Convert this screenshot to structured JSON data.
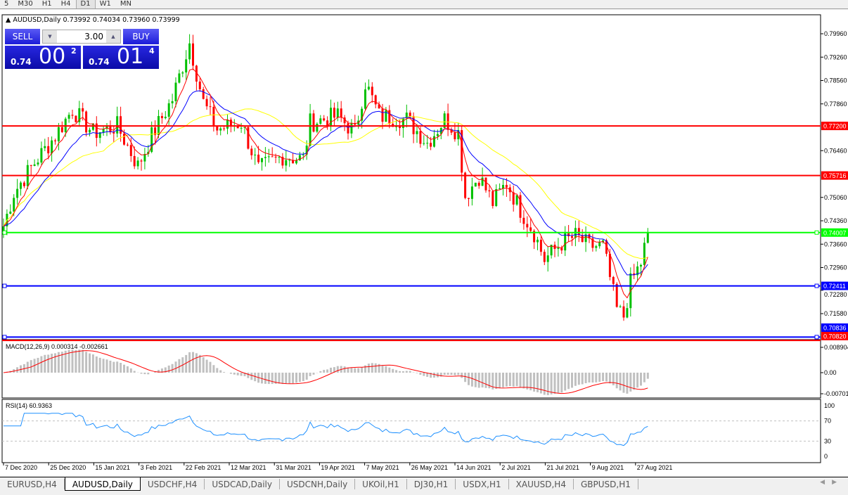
{
  "toolbar": {
    "timeframes": [
      "5",
      "M30",
      "H1",
      "H4",
      "D1",
      "W1",
      "MN"
    ],
    "active": "D1"
  },
  "header": {
    "symbol": "AUDUSD,Daily",
    "ohlc": "0.73992 0.74034 0.73960 0.73999"
  },
  "trade_panel": {
    "sell_label": "SELL",
    "buy_label": "BUY",
    "lot": "3.00",
    "sell": {
      "prefix": "0.74",
      "big": "00",
      "sup": "2"
    },
    "buy": {
      "prefix": "0.74",
      "big": "01",
      "sup": "4"
    }
  },
  "colors": {
    "bull": "#00c000",
    "bear": "#ff0000",
    "ma_fast": "#ff0000",
    "ma_mid": "#0000ff",
    "ma_slow": "#ffff00",
    "macd_hist": "#c0c0c0",
    "macd_signal": "#ff0000",
    "rsi": "#1e90ff"
  },
  "chart_data": {
    "type": "candlestick",
    "price_axis": [
      "0.79960",
      "0.79260",
      "0.78560",
      "0.77860",
      "0.76460",
      "0.75060",
      "0.74360",
      "0.73660",
      "0.72960",
      "0.72280",
      "0.71580"
    ],
    "date_axis": [
      "7 Dec 2020",
      "25 Dec 2020",
      "15 Jan 2021",
      "3 Feb 2021",
      "22 Feb 2021",
      "12 Mar 2021",
      "31 Mar 2021",
      "19 Apr 2021",
      "7 May 2021",
      "26 May 2021",
      "14 Jun 2021",
      "2 Jul 2021",
      "21 Jul 2021",
      "9 Aug 2021",
      "27 Aug 2021"
    ],
    "ylim": [
      0.7075,
      0.805
    ],
    "close_path": [
      [
        0,
        0.742
      ],
      [
        3,
        0.752
      ],
      [
        9,
        0.761
      ],
      [
        15,
        0.769
      ],
      [
        20,
        0.777
      ],
      [
        26,
        0.77
      ],
      [
        33,
        0.772
      ],
      [
        39,
        0.76
      ],
      [
        43,
        0.769
      ],
      [
        49,
        0.78
      ],
      [
        54,
        0.797
      ],
      [
        58,
        0.779
      ],
      [
        62,
        0.771
      ],
      [
        69,
        0.773
      ],
      [
        74,
        0.759
      ],
      [
        81,
        0.763
      ],
      [
        87,
        0.762
      ],
      [
        89,
        0.773
      ],
      [
        97,
        0.775
      ],
      [
        102,
        0.77
      ],
      [
        105,
        0.785
      ],
      [
        109,
        0.775
      ],
      [
        117,
        0.774
      ],
      [
        123,
        0.767
      ],
      [
        128,
        0.774
      ],
      [
        132,
        0.77
      ],
      [
        134,
        0.751
      ],
      [
        138,
        0.757
      ],
      [
        142,
        0.749
      ],
      [
        146,
        0.755
      ],
      [
        150,
        0.747
      ],
      [
        154,
        0.74
      ],
      [
        157,
        0.732
      ],
      [
        162,
        0.737
      ],
      [
        166,
        0.739
      ],
      [
        170,
        0.736
      ],
      [
        174,
        0.736
      ],
      [
        178,
        0.717
      ],
      [
        180,
        0.715
      ],
      [
        182,
        0.725
      ],
      [
        185,
        0.731
      ],
      [
        187,
        0.74
      ]
    ],
    "hlines": [
      {
        "price": "0.77200",
        "color": "#ff0000"
      },
      {
        "price": "0.75716",
        "color": "#ff0000"
      },
      {
        "price": "0.74007",
        "color": "#00ff00"
      },
      {
        "price": "0.72411",
        "color": "#0000ff"
      },
      {
        "price": "0.70836",
        "color": "#0000ff"
      },
      {
        "price": "0.70820",
        "color": "#ff0000"
      }
    ],
    "macd": {
      "label": "MACD(12,26,9) 0.000314 -0.002661",
      "axis": [
        "0.008904",
        "0.00",
        "-0.00701"
      ]
    },
    "rsi": {
      "label": "RSI(14) 60.9363",
      "axis": [
        "100",
        "70",
        "30",
        "0"
      ],
      "levels": [
        70,
        30
      ]
    }
  },
  "tabs": [
    "EURUSD,H4",
    "AUDUSD,Daily",
    "USDCHF,H4",
    "USDCAD,Daily",
    "USDCNH,Daily",
    "UKOil,H1",
    "DJ30,H1",
    "USDX,H1",
    "XAUUSD,H4",
    "GBPUSD,H1"
  ],
  "active_tab": "AUDUSD,Daily"
}
